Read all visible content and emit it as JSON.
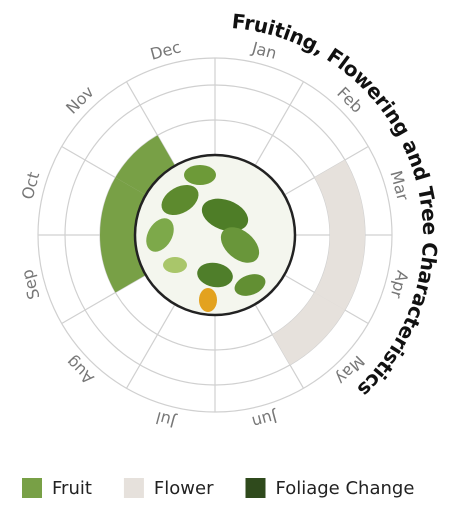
{
  "chart_data": {
    "type": "radial",
    "title": "Fruiting, Flowering and Tree Characteristics",
    "categories": [
      "Jan",
      "Feb",
      "Mar",
      "Apr",
      "May",
      "Jun",
      "Jul",
      "Aug",
      "Sep",
      "Oct",
      "Nov",
      "Dec"
    ],
    "series": [
      {
        "name": "Fruit",
        "color": "#78a046",
        "values": [
          0,
          0,
          0,
          0,
          0,
          0,
          0,
          0,
          1,
          1,
          1,
          0
        ]
      },
      {
        "name": "Flower",
        "color": "#e6e1dc",
        "values": [
          0,
          0,
          1,
          1,
          1,
          0,
          0,
          0,
          0,
          0,
          0,
          0
        ]
      },
      {
        "name": "Foliage Change",
        "color": "#2f4a1c",
        "values": [
          0,
          0,
          0,
          0,
          0,
          0,
          0,
          0,
          0,
          0,
          0,
          0
        ]
      }
    ]
  }
}
